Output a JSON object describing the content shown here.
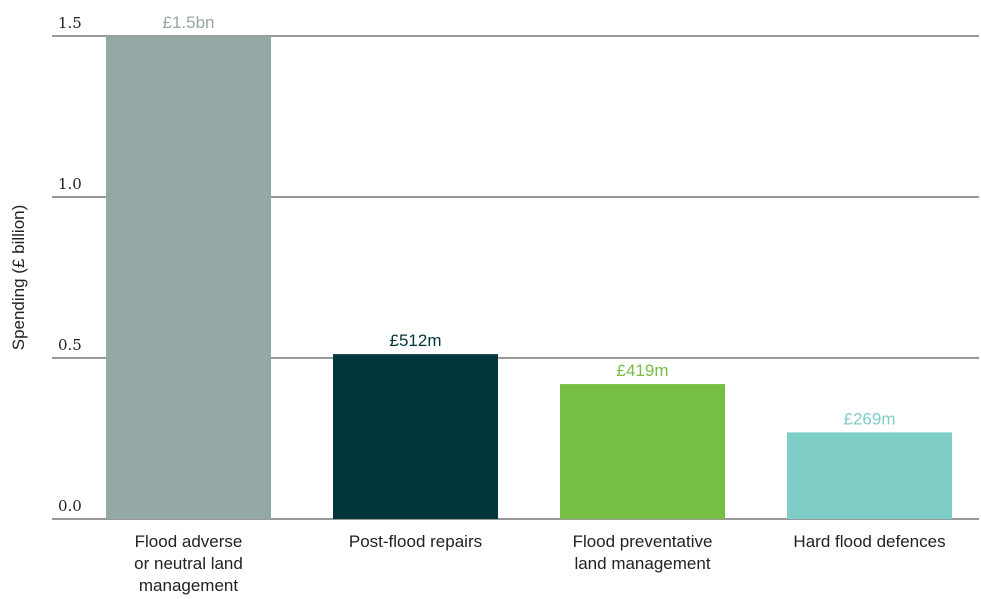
{
  "chart_data": {
    "type": "bar",
    "title": "",
    "xlabel": "",
    "ylabel": "Spending (£ billion)",
    "ylim": [
      0,
      1.5
    ],
    "yticks": [
      "0.0",
      "0.5",
      "1.0",
      "1.5"
    ],
    "ytick_values": [
      0,
      0.5,
      1.0,
      1.5
    ],
    "grid": true,
    "categories": [
      [
        "Flood adverse",
        "or neutral land",
        "management"
      ],
      [
        "Post-flood repairs"
      ],
      [
        "Flood preventative",
        "land management"
      ],
      [
        "Hard flood defences"
      ]
    ],
    "values": [
      1.5,
      0.512,
      0.419,
      0.269
    ],
    "data_labels": [
      "£1.5bn",
      "£512m",
      "£419m",
      "£269m"
    ],
    "colors": [
      "#94a8a5",
      "#02363a",
      "#76bf43",
      "#7ecdc7"
    ]
  }
}
